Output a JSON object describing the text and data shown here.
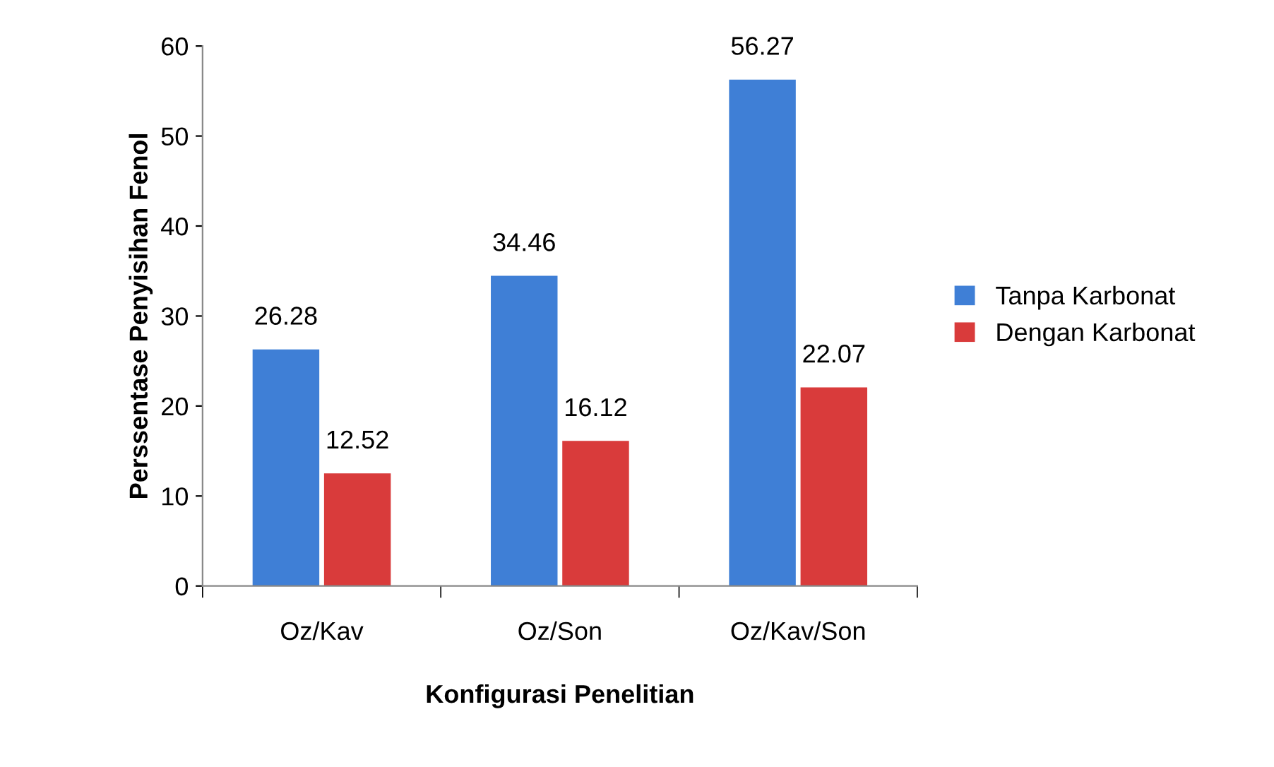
{
  "chart_data": {
    "type": "bar",
    "xlabel": "Konfigurasi Penelitian",
    "ylabel": "Perssentase Penyisihan Fenol",
    "categories": [
      "Oz/Kav",
      "Oz/Son",
      "Oz/Kav/Son"
    ],
    "series": [
      {
        "name": "Tanpa Karbonat",
        "color": "#3f7fd6",
        "values": [
          26.28,
          34.46,
          56.27
        ]
      },
      {
        "name": "Dengan Karbonat",
        "color": "#d93b3b",
        "values": [
          12.52,
          16.12,
          22.07
        ]
      }
    ],
    "ylim": [
      0,
      60
    ],
    "yticks": [
      0,
      10,
      20,
      30,
      40,
      50,
      60
    ],
    "grid": false,
    "legend": "right",
    "data_labels": true
  }
}
